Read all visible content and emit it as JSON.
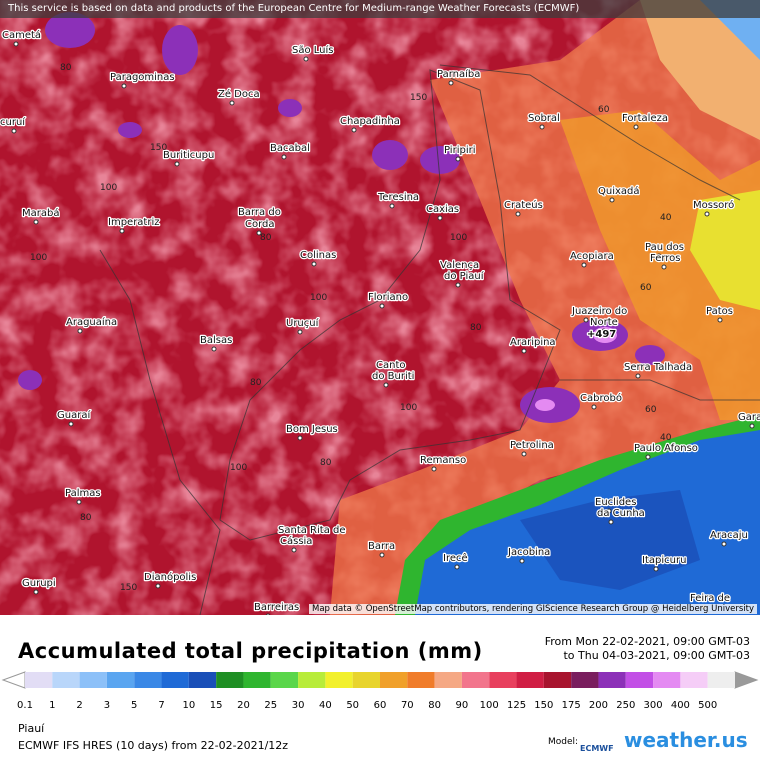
{
  "header": {
    "notice": "This service is based on data and products of the European Centre for Medium-range Weather Forecasts (ECMWF)"
  },
  "map": {
    "cities": [
      "Cametá",
      "Paragominas",
      "São Luís",
      "Parnaíba",
      "Zé Doca",
      "Sobral",
      "Fortaleza",
      "Chapadinha",
      "Bacabal",
      "Buriticupu",
      "Piripiri",
      "Quixadá",
      "Crateús",
      "Teresina",
      "Mossoró",
      "Marabá",
      "Imperatriz",
      "Barra do",
      "Corda",
      "Acopiara",
      "Pau dos",
      "Ferros",
      "Colinas",
      "Valença",
      "do Piauí",
      "Floriano",
      "Patos",
      "Araguaína",
      "Uruçuí",
      "Juazeiro do",
      "Norte",
      "Araripina",
      "Balsas",
      "Serra Talhada",
      "Canto",
      "do Buriti",
      "Guaraí",
      "Cabrobó",
      "Bom Jesus",
      "Petrolina",
      "Paulo Afonso",
      "Remanso",
      "Palmas",
      "Euclides",
      "da Cunha",
      "Santa Rita de",
      "Cássia",
      "Barra",
      "Aracaju",
      "Irecê",
      "Jacobina",
      "Itapicuru",
      "Gurupi",
      "Dianópolis",
      "Feira de",
      "Barreiras",
      "curuí",
      "Caxias",
      "Garanhuns"
    ],
    "max_label": "+497",
    "contour_labels": [
      "80",
      "100",
      "150",
      "60",
      "40",
      "80",
      "100",
      "100",
      "150",
      "80",
      "60",
      "100",
      "80",
      "60",
      "40",
      "100",
      "80",
      "150",
      "100",
      "80"
    ],
    "attribution": "Map data © OpenStreetMap contributors, rendering GIScience Research Group @ Heidelberg University"
  },
  "legend": {
    "title": "Accumulated total precipitation (mm)",
    "period": [
      "From Mon 22-02-2021, 09:00 GMT-03",
      "to Thu 04-03-2021, 09:00 GMT-03"
    ],
    "scale": [
      {
        "label": "0.1",
        "color": "#e2ddf5"
      },
      {
        "label": "1",
        "color": "#b9d6fa"
      },
      {
        "label": "2",
        "color": "#8cc0f8"
      },
      {
        "label": "3",
        "color": "#5aa5f0"
      },
      {
        "label": "5",
        "color": "#3a88e6"
      },
      {
        "label": "7",
        "color": "#1f6ad6"
      },
      {
        "label": "10",
        "color": "#1a4fb8"
      },
      {
        "label": "15",
        "color": "#1f8f24"
      },
      {
        "label": "20",
        "color": "#2fb52f"
      },
      {
        "label": "25",
        "color": "#5ad64a"
      },
      {
        "label": "30",
        "color": "#b8ec3a"
      },
      {
        "label": "40",
        "color": "#f2f02c"
      },
      {
        "label": "50",
        "color": "#e8d42c"
      },
      {
        "label": "60",
        "color": "#f0a02a"
      },
      {
        "label": "70",
        "color": "#f07c2a"
      },
      {
        "label": "80",
        "color": "#f5a884"
      },
      {
        "label": "90",
        "color": "#f2758c"
      },
      {
        "label": "100",
        "color": "#e8405e"
      },
      {
        "label": "125",
        "color": "#d01e44"
      },
      {
        "label": "150",
        "color": "#a8142e"
      },
      {
        "label": "175",
        "color": "#7a1e5e"
      },
      {
        "label": "200",
        "color": "#8c30b8"
      },
      {
        "label": "250",
        "color": "#c24fe6"
      },
      {
        "label": "300",
        "color": "#e48af2"
      },
      {
        "label": "400",
        "color": "#f5cdf7"
      },
      {
        "label": "500",
        "color": "#eeeeee"
      }
    ]
  },
  "footer": {
    "region": "Piauí",
    "model": "ECMWF IFS HRES (10 days) from 22-02-2021/12z",
    "model_label": "Model:",
    "logo": "ECMWF",
    "brand": "weather.us"
  }
}
